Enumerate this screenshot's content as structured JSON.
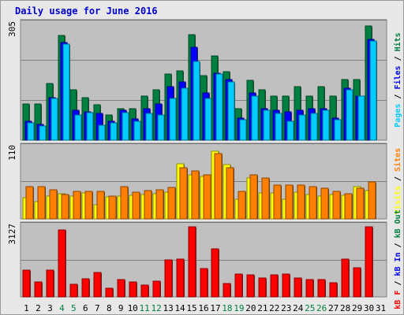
{
  "chart_data": [
    {
      "type": "bar",
      "title": "Daily usage for June 2016",
      "ytick_label": "305",
      "ylim": [
        0,
        305
      ],
      "legend": [
        {
          "label": "Pages",
          "color": "#00ccff"
        },
        {
          "label": "Files",
          "color": "#0000ff"
        },
        {
          "label": "Hits",
          "color": "#008040"
        }
      ],
      "categories": [
        "1",
        "2",
        "3",
        "4",
        "5",
        "6",
        "7",
        "8",
        "9",
        "10",
        "11",
        "12",
        "13",
        "14",
        "15",
        "16",
        "17",
        "18",
        "19",
        "20",
        "21",
        "22",
        "23",
        "24",
        "25",
        "26",
        "27",
        "28",
        "29",
        "30",
        "31"
      ],
      "series": [
        {
          "name": "Hits",
          "values": [
            95,
            95,
            150,
            275,
            133,
            112,
            93,
            67,
            82,
            84,
            117,
            133,
            174,
            183,
            278,
            171,
            221,
            181,
            84,
            157,
            133,
            117,
            117,
            142,
            117,
            142,
            117,
            159,
            159,
            300,
            0
          ]
        },
        {
          "name": "Files",
          "values": [
            50,
            42,
            113,
            258,
            78,
            75,
            70,
            50,
            78,
            55,
            84,
            96,
            141,
            154,
            244,
            124,
            177,
            159,
            58,
            124,
            84,
            78,
            75,
            78,
            84,
            84,
            58,
            137,
            117,
            266,
            0
          ]
        },
        {
          "name": "Pages",
          "values": [
            46,
            38,
            109,
            254,
            66,
            72,
            40,
            46,
            72,
            50,
            71,
            66,
            110,
            137,
            208,
            109,
            174,
            154,
            54,
            117,
            79,
            71,
            50,
            66,
            71,
            79,
            54,
            133,
            117,
            262,
            0
          ]
        }
      ]
    },
    {
      "type": "bar",
      "ytick_label": "110",
      "ylim": [
        0,
        110
      ],
      "legend": [
        {
          "label": "Visits",
          "color": "#ffff00"
        },
        {
          "label": "Sites",
          "color": "#ff8000"
        }
      ],
      "categories": [
        "1",
        "2",
        "3",
        "4",
        "5",
        "6",
        "7",
        "8",
        "9",
        "10",
        "11",
        "12",
        "13",
        "14",
        "15",
        "16",
        "17",
        "18",
        "19",
        "20",
        "21",
        "22",
        "23",
        "24",
        "25",
        "26",
        "27",
        "28",
        "29",
        "30",
        "31"
      ],
      "series": [
        {
          "name": "Visits",
          "values": [
            33,
            27,
            36,
            39,
            36,
            40,
            22,
            34,
            35,
            37,
            38,
            39,
            41,
            85,
            69,
            66,
            105,
            84,
            31,
            64,
            40,
            40,
            30,
            42,
            38,
            35,
            38,
            37,
            50,
            44,
            0
          ]
        },
        {
          "name": "Sites",
          "values": [
            50,
            50,
            45,
            38,
            43,
            43,
            43,
            35,
            50,
            42,
            44,
            45,
            49,
            79,
            75,
            68,
            102,
            80,
            43,
            69,
            63,
            53,
            52,
            53,
            50,
            48,
            43,
            39,
            48,
            58,
            0
          ]
        }
      ]
    },
    {
      "type": "bar",
      "ytick_label": "3127",
      "ylim": [
        0,
        3127
      ],
      "legend": [
        {
          "label": "kB F",
          "color": "#ff0000"
        },
        {
          "label": "kB In",
          "color": "#0000ff"
        },
        {
          "label": "kB Out",
          "color": "#008040"
        }
      ],
      "categories": [
        "1",
        "2",
        "3",
        "4",
        "5",
        "6",
        "7",
        "8",
        "9",
        "10",
        "11",
        "12",
        "13",
        "14",
        "15",
        "16",
        "17",
        "18",
        "19",
        "20",
        "21",
        "22",
        "23",
        "24",
        "25",
        "26",
        "27",
        "28",
        "29",
        "30",
        "31"
      ],
      "series": [
        {
          "name": "kB F",
          "values": [
            1188,
            658,
            1209,
            3000,
            573,
            806,
            1103,
            403,
            785,
            679,
            530,
            700,
            1655,
            1677,
            3127,
            1274,
            2143,
            594,
            1019,
            997,
            859,
            997,
            1019,
            828,
            763,
            785,
            636,
            1676,
            1316,
            3127,
            0
          ]
        }
      ]
    }
  ]
}
